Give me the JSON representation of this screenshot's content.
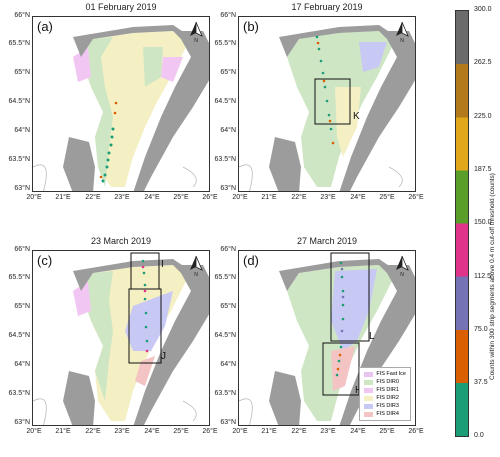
{
  "panels": [
    {
      "label": "(a)",
      "title": "01 February 2019"
    },
    {
      "label": "(b)",
      "title": "17 February 2019"
    },
    {
      "label": "(c)",
      "title": "23 March 2019"
    },
    {
      "label": "(d)",
      "title": "27 March 2019"
    }
  ],
  "lat_ticks": [
    "66°N",
    "65.5°N",
    "65°N",
    "64.5°N",
    "64°N",
    "63.5°N",
    "63°N"
  ],
  "lon_ticks": [
    "20°E",
    "21°E",
    "22°E",
    "23°E",
    "24°E",
    "25°E",
    "26°E"
  ],
  "box_labels": {
    "b": [
      "K"
    ],
    "c": [
      "I",
      "J"
    ],
    "d": [
      "L",
      "H"
    ]
  },
  "north_letter": "N",
  "legend": [
    {
      "name": "FIS Fast Ice",
      "color": "#e8c5f0"
    },
    {
      "name": "FIS DIR0",
      "color": "#cfe6c5"
    },
    {
      "name": "FIS DIR1",
      "color": "#f2c6f2"
    },
    {
      "name": "FIS DIR2",
      "color": "#f4f0c4"
    },
    {
      "name": "FIS DIR3",
      "color": "#c8c8f4"
    },
    {
      "name": "FIS DIR4",
      "color": "#f4c4c4"
    }
  ],
  "colorbar": {
    "title": "Counts within 300 strip segments above 0.4 m cut-off threshold (counts)",
    "ticks": [
      "300.0",
      "262.5",
      "225.0",
      "187.5",
      "150.0",
      "112.5",
      "75.0",
      "37.5",
      "0.0"
    ],
    "colors": [
      "#6b6b6b",
      "#b37a1c",
      "#e0a81a",
      "#5a9e2a",
      "#e0338a",
      "#7572b5",
      "#d95f02",
      "#1b9e77"
    ]
  }
}
